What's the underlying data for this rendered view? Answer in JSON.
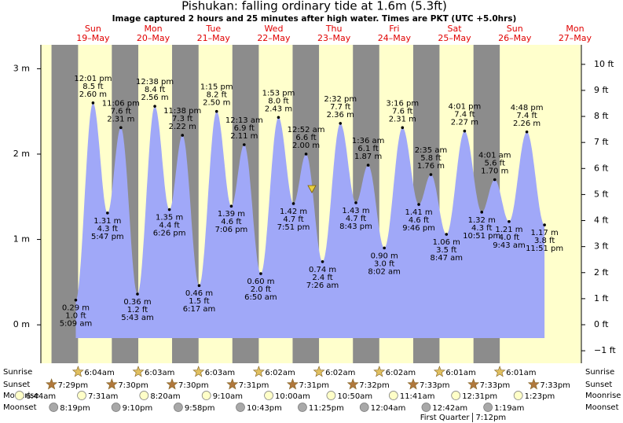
{
  "chart_data": {
    "type": "tide",
    "title": "Pishukan: falling  ordinary tide at 1.6m (5.3ft)",
    "subtitle": "Image captured 2 hours and 25 minutes after high water. Times are PKT (UTC +5.0hrs)",
    "ylim": [
      -0.45,
      3.28
    ],
    "yticks": [
      {
        "value": 0,
        "label": "0 m"
      },
      {
        "value": 1,
        "label": "1 m"
      },
      {
        "value": 2,
        "label": "2 m"
      },
      {
        "value": 3,
        "label": "3 m"
      }
    ],
    "y2lim": [
      -1.48,
      10.75
    ],
    "y2ticks": [
      {
        "value": -1,
        "label": "−1 ft"
      },
      {
        "value": 0,
        "label": "0 ft"
      },
      {
        "value": 1,
        "label": "1 ft"
      },
      {
        "value": 2,
        "label": "2 ft"
      },
      {
        "value": 3,
        "label": "3 ft"
      },
      {
        "value": 4,
        "label": "4 ft"
      },
      {
        "value": 5,
        "label": "5 ft"
      },
      {
        "value": 6,
        "label": "6 ft"
      },
      {
        "value": 7,
        "label": "7 ft"
      },
      {
        "value": 8,
        "label": "8 ft"
      },
      {
        "value": 9,
        "label": "9 ft"
      },
      {
        "value": 10,
        "label": "10 ft"
      }
    ],
    "row_labels": {
      "sunrise": "Sunrise",
      "sunset": "Sunset",
      "moonrise": "Moonrise",
      "moonset": "Moonset"
    },
    "previous_day": {
      "sunset": "7:29pm",
      "moonrise": "6:44am",
      "moonset": "8:19pm"
    },
    "days": [
      {
        "weekday": "Sun",
        "date": "19–May",
        "sunrise": "6:04am",
        "sunset": "7:30pm",
        "moonrise": "7:31am",
        "moonset": "9:10pm",
        "tides": [
          {
            "time": "5:09 am",
            "value": 0.29,
            "value_label": "0.29 m",
            "ft": "1.0 ft"
          },
          {
            "time": "12:01 pm",
            "value": 2.6,
            "value_label": "2.60 m",
            "ft": "8.5 ft"
          },
          {
            "time": "5:47 pm",
            "value": 1.31,
            "value_label": "1.31 m",
            "ft": "4.3 ft"
          },
          {
            "time": "11:06 pm",
            "value": 2.31,
            "value_label": "2.31 m",
            "ft": "7.6 ft"
          }
        ]
      },
      {
        "weekday": "Mon",
        "date": "20–May",
        "sunrise": "6:03am",
        "sunset": "7:30pm",
        "moonrise": "8:20am",
        "moonset": "9:58pm",
        "tides": [
          {
            "time": "5:43 am",
            "value": 0.36,
            "value_label": "0.36 m",
            "ft": "1.2 ft"
          },
          {
            "time": "12:38 pm",
            "value": 2.56,
            "value_label": "2.56 m",
            "ft": "8.4 ft"
          },
          {
            "time": "6:26 pm",
            "value": 1.35,
            "value_label": "1.35 m",
            "ft": "4.4 ft"
          },
          {
            "time": "11:38 pm",
            "value": 2.22,
            "value_label": "2.22 m",
            "ft": "7.3 ft"
          }
        ]
      },
      {
        "weekday": "Tue",
        "date": "21–May",
        "sunrise": "6:03am",
        "sunset": "7:31pm",
        "moonrise": "9:10am",
        "moonset": "10:43pm",
        "tides": [
          {
            "time": "6:17 am",
            "value": 0.46,
            "value_label": "0.46 m",
            "ft": "1.5 ft"
          },
          {
            "time": "1:15 pm",
            "value": 2.5,
            "value_label": "2.50 m",
            "ft": "8.2 ft"
          },
          {
            "time": "7:06 pm",
            "value": 1.39,
            "value_label": "1.39 m",
            "ft": "4.6 ft"
          }
        ]
      },
      {
        "weekday": "Wed",
        "date": "22–May",
        "sunrise": "6:02am",
        "sunset": "7:31pm",
        "moonrise": "10:00am",
        "moonset": "11:25pm",
        "tides": [
          {
            "time": "12:13 am",
            "value": 2.11,
            "value_label": "2.11 m",
            "ft": "6.9 ft"
          },
          {
            "time": "6:50 am",
            "value": 0.6,
            "value_label": "0.60 m",
            "ft": "2.0 ft"
          },
          {
            "time": "1:53 pm",
            "value": 2.43,
            "value_label": "2.43 m",
            "ft": "8.0 ft"
          },
          {
            "time": "7:51 pm",
            "value": 1.42,
            "value_label": "1.42 m",
            "ft": "4.7 ft"
          }
        ]
      },
      {
        "weekday": "Thu",
        "date": "23–May",
        "sunrise": "6:02am",
        "sunset": "7:32pm",
        "moonrise": "10:50am",
        "tides": [
          {
            "time": "12:52 am",
            "value": 2.0,
            "value_label": "2.00 m",
            "ft": "6.6 ft"
          },
          {
            "time": "7:26 am",
            "value": 0.74,
            "value_label": "0.74 m",
            "ft": "2.4 ft"
          },
          {
            "time": "2:32 pm",
            "value": 2.36,
            "value_label": "2.36 m",
            "ft": "7.7 ft"
          },
          {
            "time": "8:43 pm",
            "value": 1.43,
            "value_label": "1.43 m",
            "ft": "4.7 ft"
          }
        ]
      },
      {
        "weekday": "Fri",
        "date": "24–May",
        "sunrise": "6:02am",
        "sunset": "7:33pm",
        "moonrise": "11:41am",
        "moonset": "12:04am",
        "tides": [
          {
            "time": "1:36 am",
            "value": 1.87,
            "value_label": "1.87 m",
            "ft": "6.1 ft"
          },
          {
            "time": "8:02 am",
            "value": 0.9,
            "value_label": "0.90 m",
            "ft": "3.0 ft"
          },
          {
            "time": "3:16 pm",
            "value": 2.31,
            "value_label": "2.31 m",
            "ft": "7.6 ft"
          },
          {
            "time": "9:46 pm",
            "value": 1.41,
            "value_label": "1.41 m",
            "ft": "4.6 ft"
          }
        ]
      },
      {
        "weekday": "Sat",
        "date": "25–May",
        "sunrise": "6:01am",
        "sunset": "7:33pm",
        "moonrise": "12:31pm",
        "moonset": "12:42am",
        "moon_phase": "First Quarter",
        "moon_phase_time": "7:12pm",
        "tides": [
          {
            "time": "2:35 am",
            "value": 1.76,
            "value_label": "1.76 m",
            "ft": "5.8 ft"
          },
          {
            "time": "8:47 am",
            "value": 1.06,
            "value_label": "1.06 m",
            "ft": "3.5 ft"
          },
          {
            "time": "4:01 pm",
            "value": 2.27,
            "value_label": "2.27 m",
            "ft": "7.4 ft"
          },
          {
            "time": "10:51 pm",
            "value": 1.32,
            "value_label": "1.32 m",
            "ft": "4.3 ft"
          }
        ]
      },
      {
        "weekday": "Sun",
        "date": "26–May",
        "sunrise": "6:01am",
        "sunset": "7:33pm",
        "moonrise": "1:23pm",
        "moonset": "1:19am",
        "tides": [
          {
            "time": "4:01 am",
            "value": 1.7,
            "value_label": "1.70 m",
            "ft": "5.6 ft"
          },
          {
            "time": "9:43 am",
            "value": 1.21,
            "value_label": "1.21 m",
            "ft": "4.0 ft"
          },
          {
            "time": "4:48 pm",
            "value": 2.26,
            "value_label": "2.26 m",
            "ft": "7.4 ft"
          },
          {
            "time": "11:51 pm",
            "value": 1.17,
            "value_label": "1.17 m",
            "ft": "3.8 ft"
          }
        ]
      },
      {
        "weekday": "Mon",
        "date": "27–May",
        "tides": []
      }
    ]
  }
}
